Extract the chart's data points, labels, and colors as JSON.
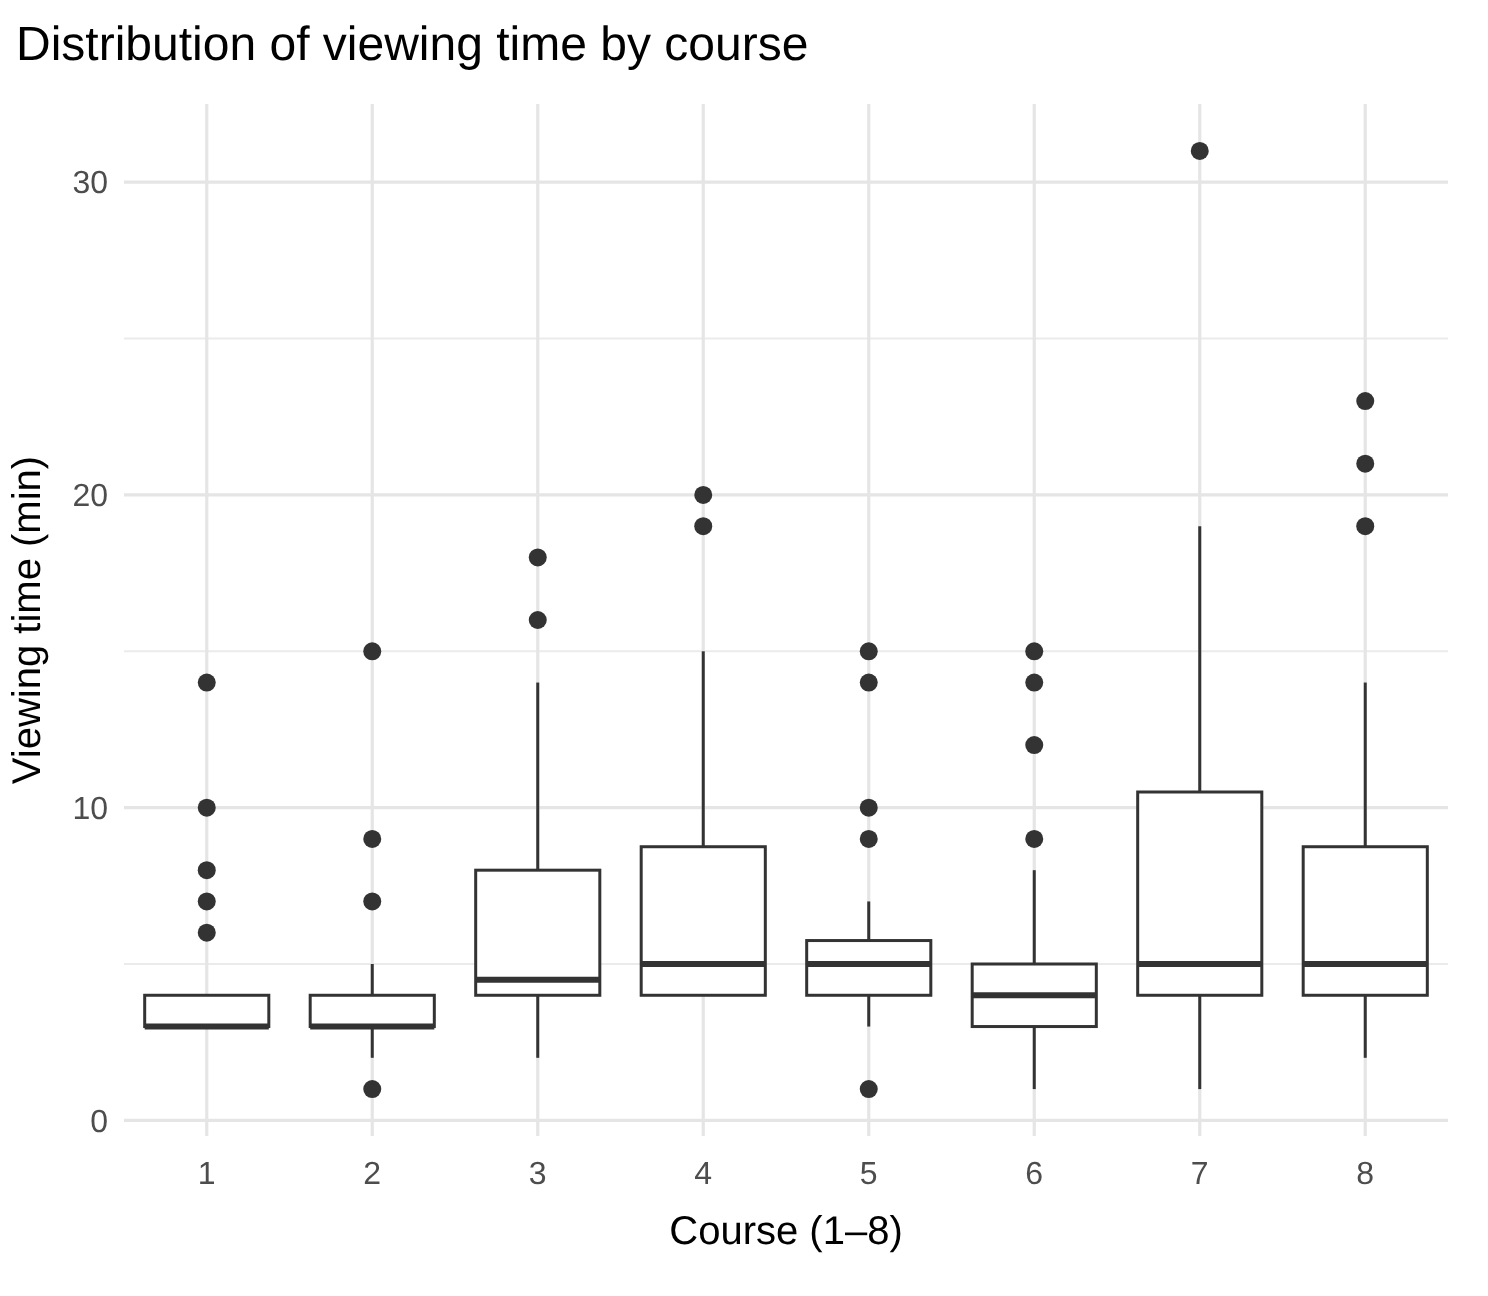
{
  "chart_data": {
    "type": "box",
    "title": "Distribution of viewing time by course",
    "xlabel": "Course (1–8)",
    "ylabel": "Viewing time (min)",
    "categories": [
      "1",
      "2",
      "3",
      "4",
      "5",
      "6",
      "7",
      "8"
    ],
    "boxes": [
      {
        "low": 3,
        "q1": 3,
        "median": 3,
        "q3": 4,
        "high": 4,
        "outliers": [
          6,
          7,
          8,
          10,
          14
        ]
      },
      {
        "low": 2,
        "q1": 3,
        "median": 3,
        "q3": 4,
        "high": 5,
        "outliers": [
          1,
          7,
          9,
          15
        ]
      },
      {
        "low": 2,
        "q1": 4,
        "median": 4.5,
        "q3": 8,
        "high": 14,
        "outliers": [
          16,
          18
        ]
      },
      {
        "low": 4,
        "q1": 4,
        "median": 5,
        "q3": 8.75,
        "high": 15,
        "outliers": [
          19,
          20
        ]
      },
      {
        "low": 3,
        "q1": 4,
        "median": 5,
        "q3": 5.75,
        "high": 7,
        "outliers": [
          1,
          9,
          10,
          14,
          15
        ]
      },
      {
        "low": 1,
        "q1": 3,
        "median": 4,
        "q3": 5,
        "high": 8,
        "outliers": [
          9,
          12,
          14,
          15
        ]
      },
      {
        "low": 1,
        "q1": 4,
        "median": 5,
        "q3": 10.5,
        "high": 19,
        "outliers": [
          31
        ]
      },
      {
        "low": 2,
        "q1": 4,
        "median": 5,
        "q3": 8.75,
        "high": 14,
        "outliers": [
          19,
          21,
          23
        ]
      }
    ],
    "color": "#333333",
    "ylim": [
      -0.5,
      32.5
    ],
    "yticks": [
      0,
      10,
      20,
      30
    ],
    "grid": true
  }
}
